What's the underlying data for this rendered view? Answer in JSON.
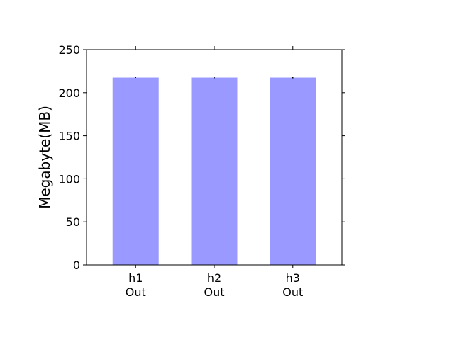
{
  "chart_data": {
    "type": "bar",
    "title": "",
    "xlabel": "",
    "ylabel": "Megabyte(MB)",
    "categories": [
      "h1\nOut",
      "h2\nOut",
      "h3\nOut"
    ],
    "values": [
      217.5,
      217.5,
      217.5
    ],
    "errors": [
      0.4,
      0.8,
      0.8
    ],
    "ylim": [
      0,
      250
    ],
    "yticks": [
      0,
      50,
      100,
      150,
      200,
      250
    ],
    "grid": false,
    "legend": "none",
    "colors": {
      "bar": "#9999ff",
      "axis": "#000000",
      "error": "#000000"
    }
  }
}
